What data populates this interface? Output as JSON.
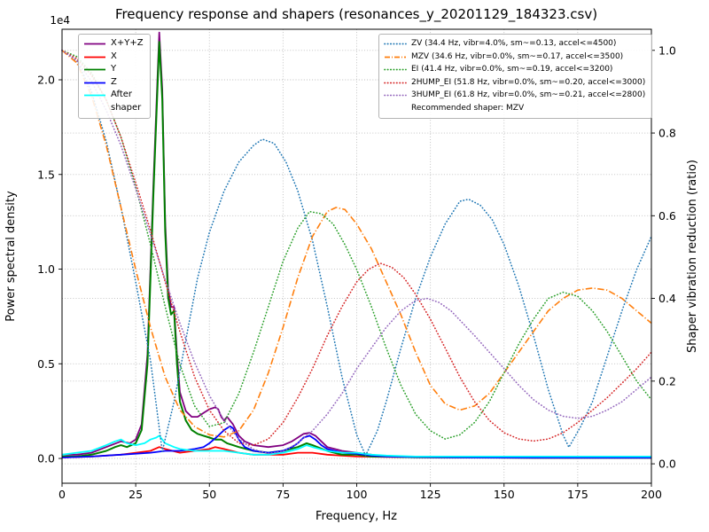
{
  "figure": {
    "title": "Frequency response and shapers (resonances_y_20201129_184323.csv)"
  },
  "legend_psd": {
    "items": [
      {
        "name": "xyz",
        "label": "X+Y+Z",
        "color": "#800080",
        "style": "solid"
      },
      {
        "name": "x",
        "label": "X",
        "color": "#ff0000",
        "style": "solid"
      },
      {
        "name": "y",
        "label": "Y",
        "color": "#008000",
        "style": "solid"
      },
      {
        "name": "z",
        "label": "Z",
        "color": "#0000ff",
        "style": "solid"
      },
      {
        "name": "after-shaper",
        "label": "After\nshaper",
        "color": "#00ffff",
        "style": "solid"
      }
    ]
  },
  "legend_shapers": {
    "items": [
      {
        "name": "zv",
        "label": "ZV (34.4 Hz, vibr=4.0%, sm~=0.13, accel<=4500)",
        "color": "#1f77b4",
        "style": "dotted"
      },
      {
        "name": "mzv",
        "label": "MZV (34.6 Hz, vibr=0.0%, sm~=0.17, accel<=3500)",
        "color": "#ff7f0e",
        "style": "dashdot"
      },
      {
        "name": "ei",
        "label": "EI (41.4 Hz, vibr=0.0%, sm~=0.19, accel<=3200)",
        "color": "#2ca02c",
        "style": "dotted"
      },
      {
        "name": "2hump-ei",
        "label": "2HUMP_EI (51.8 Hz, vibr=0.0%, sm~=0.20, accel<=3000)",
        "color": "#d62728",
        "style": "dotted"
      },
      {
        "name": "3hump-ei",
        "label": "3HUMP_EI (61.8 Hz, vibr=0.0%, sm~=0.21, accel<=2800)",
        "color": "#9467bd",
        "style": "dotted"
      }
    ],
    "note": "Recommended shaper: MZV"
  },
  "chart_data": {
    "type": "line",
    "title": "Frequency response and shapers (resonances_y_20201129_184323.csv)",
    "x_axis": {
      "label": "Frequency, Hz",
      "min": 0,
      "max": 200,
      "ticks": [
        0,
        25,
        50,
        75,
        100,
        125,
        150,
        175,
        200
      ]
    },
    "y_axis_left": {
      "label": "Power spectral density",
      "offset_text": "1e4",
      "unit_scale": 10000,
      "ticks": [
        0.0,
        0.5,
        1.0,
        1.5,
        2.0
      ],
      "range": [
        -0.131,
        2.267
      ]
    },
    "y_axis_right": {
      "label": "Shaper vibration reduction (ratio)",
      "ticks": [
        0.0,
        0.2,
        0.4,
        0.6,
        0.8,
        1.0
      ],
      "range": [
        -0.047,
        1.051
      ]
    },
    "grid": true,
    "series": [
      {
        "name": "xyz",
        "label": "X+Y+Z",
        "axis": "left",
        "color": "#800080",
        "style": "solid",
        "width": 1.8,
        "x": [
          0,
          5,
          10,
          15,
          20,
          23,
          25,
          27,
          29,
          31,
          33,
          34,
          35,
          36,
          37,
          38,
          39,
          40,
          42,
          44,
          46,
          48,
          50,
          52,
          53,
          54,
          55,
          56,
          57,
          58,
          60,
          62,
          65,
          70,
          75,
          78,
          80,
          82,
          84,
          86,
          88,
          90,
          95,
          100,
          105,
          110,
          120,
          140,
          160,
          180,
          200
        ],
        "y": [
          0.02,
          0.02,
          0.03,
          0.06,
          0.09,
          0.08,
          0.1,
          0.18,
          0.55,
          1.45,
          2.25,
          1.95,
          1.25,
          0.9,
          0.8,
          0.8,
          0.55,
          0.35,
          0.25,
          0.22,
          0.22,
          0.24,
          0.26,
          0.27,
          0.26,
          0.22,
          0.2,
          0.22,
          0.2,
          0.18,
          0.12,
          0.09,
          0.07,
          0.06,
          0.07,
          0.09,
          0.11,
          0.13,
          0.135,
          0.12,
          0.09,
          0.06,
          0.04,
          0.03,
          0.02,
          0.01,
          0.008,
          0.006,
          0.005,
          0.005,
          0.005
        ]
      },
      {
        "name": "x",
        "label": "X",
        "axis": "left",
        "color": "#ff0000",
        "style": "solid",
        "width": 1.8,
        "x": [
          0,
          10,
          20,
          30,
          33,
          35,
          40,
          45,
          50,
          52,
          55,
          60,
          65,
          70,
          75,
          80,
          85,
          90,
          100,
          110,
          130,
          160,
          200
        ],
        "y": [
          0.005,
          0.01,
          0.02,
          0.04,
          0.06,
          0.05,
          0.03,
          0.04,
          0.05,
          0.06,
          0.05,
          0.03,
          0.02,
          0.02,
          0.02,
          0.03,
          0.03,
          0.02,
          0.01,
          0.008,
          0.005,
          0.004,
          0.004
        ]
      },
      {
        "name": "y",
        "label": "Y",
        "axis": "left",
        "color": "#008000",
        "style": "solid",
        "width": 2.0,
        "x": [
          0,
          5,
          10,
          15,
          18,
          20,
          22,
          25,
          27,
          29,
          31,
          33,
          34,
          35,
          36,
          37,
          38,
          39,
          40,
          42,
          44,
          46,
          48,
          50,
          52,
          54,
          56,
          58,
          60,
          65,
          70,
          75,
          80,
          83,
          85,
          90,
          95,
          100,
          105,
          110,
          120,
          140,
          160,
          180,
          200
        ],
        "y": [
          0.01,
          0.01,
          0.02,
          0.04,
          0.06,
          0.07,
          0.06,
          0.08,
          0.15,
          0.5,
          1.4,
          2.2,
          1.9,
          1.2,
          0.85,
          0.76,
          0.78,
          0.5,
          0.3,
          0.2,
          0.15,
          0.13,
          0.12,
          0.11,
          0.1,
          0.1,
          0.08,
          0.07,
          0.06,
          0.04,
          0.03,
          0.04,
          0.06,
          0.08,
          0.07,
          0.04,
          0.02,
          0.02,
          0.01,
          0.01,
          0.006,
          0.005,
          0.004,
          0.004,
          0.004
        ]
      },
      {
        "name": "z",
        "label": "Z",
        "axis": "left",
        "color": "#0000ff",
        "style": "solid",
        "width": 1.8,
        "x": [
          0,
          10,
          20,
          30,
          35,
          40,
          45,
          48,
          50,
          53,
          55,
          57,
          58,
          60,
          62,
          65,
          70,
          75,
          78,
          80,
          82,
          84,
          86,
          88,
          90,
          95,
          100,
          105,
          110,
          120,
          140,
          160,
          180,
          200
        ],
        "y": [
          0.005,
          0.01,
          0.02,
          0.03,
          0.04,
          0.04,
          0.05,
          0.06,
          0.08,
          0.12,
          0.15,
          0.17,
          0.16,
          0.1,
          0.06,
          0.04,
          0.03,
          0.04,
          0.06,
          0.08,
          0.11,
          0.12,
          0.1,
          0.07,
          0.05,
          0.03,
          0.025,
          0.015,
          0.01,
          0.007,
          0.005,
          0.004,
          0.004,
          0.004
        ]
      },
      {
        "name": "after-shaper",
        "label": "After\nshaper",
        "axis": "left",
        "color": "#00ffff",
        "style": "solid",
        "width": 1.8,
        "x": [
          0,
          5,
          10,
          15,
          18,
          20,
          22,
          25,
          28,
          30,
          32,
          33,
          35,
          38,
          40,
          45,
          50,
          55,
          60,
          65,
          70,
          75,
          80,
          83,
          85,
          90,
          95,
          100,
          105,
          110,
          120,
          140,
          160,
          180,
          200
        ],
        "y": [
          0.02,
          0.03,
          0.04,
          0.07,
          0.09,
          0.1,
          0.08,
          0.07,
          0.08,
          0.1,
          0.11,
          0.12,
          0.08,
          0.06,
          0.05,
          0.04,
          0.04,
          0.04,
          0.03,
          0.02,
          0.02,
          0.03,
          0.05,
          0.07,
          0.06,
          0.04,
          0.03,
          0.03,
          0.02,
          0.015,
          0.01,
          0.01,
          0.01,
          0.01,
          0.01
        ]
      },
      {
        "name": "zv",
        "label": "ZV",
        "axis": "right",
        "color": "#1f77b4",
        "style": "dotted",
        "width": 1.6,
        "x": [
          0,
          5,
          10,
          15,
          20,
          25,
          30,
          34,
          38,
          42,
          46,
          50,
          55,
          60,
          65,
          68,
          72,
          76,
          80,
          85,
          90,
          95,
          100,
          103,
          107,
          110,
          115,
          120,
          125,
          130,
          135,
          138,
          142,
          146,
          150,
          155,
          160,
          165,
          170,
          172,
          176,
          180,
          185,
          190,
          195,
          200
        ],
        "y": [
          1.0,
          0.975,
          0.9,
          0.78,
          0.62,
          0.44,
          0.25,
          0.03,
          0.15,
          0.3,
          0.45,
          0.56,
          0.66,
          0.73,
          0.77,
          0.785,
          0.775,
          0.73,
          0.66,
          0.54,
          0.38,
          0.21,
          0.07,
          0.02,
          0.08,
          0.15,
          0.28,
          0.4,
          0.5,
          0.58,
          0.635,
          0.64,
          0.625,
          0.59,
          0.53,
          0.43,
          0.31,
          0.18,
          0.07,
          0.04,
          0.09,
          0.15,
          0.26,
          0.37,
          0.47,
          0.55
        ]
      },
      {
        "name": "mzv",
        "label": "MZV",
        "axis": "right",
        "color": "#ff7f0e",
        "style": "dashdot",
        "width": 1.6,
        "x": [
          0,
          5,
          10,
          15,
          20,
          25,
          30,
          35,
          40,
          45,
          50,
          55,
          60,
          65,
          70,
          75,
          80,
          85,
          90,
          93,
          96,
          100,
          105,
          110,
          115,
          120,
          125,
          130,
          135,
          140,
          145,
          150,
          155,
          160,
          165,
          170,
          175,
          180,
          185,
          190,
          195,
          200
        ],
        "y": [
          1.0,
          0.97,
          0.89,
          0.77,
          0.62,
          0.47,
          0.33,
          0.21,
          0.13,
          0.09,
          0.07,
          0.065,
          0.08,
          0.13,
          0.22,
          0.33,
          0.45,
          0.55,
          0.61,
          0.62,
          0.615,
          0.58,
          0.52,
          0.44,
          0.36,
          0.27,
          0.19,
          0.145,
          0.13,
          0.14,
          0.17,
          0.22,
          0.27,
          0.32,
          0.37,
          0.4,
          0.42,
          0.425,
          0.42,
          0.4,
          0.37,
          0.34
        ]
      },
      {
        "name": "ei",
        "label": "EI",
        "axis": "right",
        "color": "#2ca02c",
        "style": "dotted",
        "width": 1.6,
        "x": [
          0,
          5,
          10,
          15,
          20,
          25,
          30,
          35,
          40,
          45,
          50,
          55,
          60,
          65,
          70,
          75,
          80,
          84,
          88,
          92,
          96,
          100,
          105,
          110,
          115,
          120,
          125,
          130,
          135,
          140,
          145,
          150,
          155,
          160,
          165,
          170,
          175,
          180,
          185,
          190,
          195,
          200
        ],
        "y": [
          1.0,
          0.985,
          0.945,
          0.88,
          0.79,
          0.67,
          0.53,
          0.38,
          0.24,
          0.14,
          0.09,
          0.1,
          0.17,
          0.27,
          0.38,
          0.49,
          0.57,
          0.61,
          0.605,
          0.58,
          0.53,
          0.47,
          0.38,
          0.28,
          0.19,
          0.12,
          0.08,
          0.06,
          0.07,
          0.1,
          0.15,
          0.22,
          0.29,
          0.35,
          0.4,
          0.415,
          0.405,
          0.37,
          0.32,
          0.26,
          0.2,
          0.155
        ]
      },
      {
        "name": "2hump-ei",
        "label": "2HUMP_EI",
        "axis": "right",
        "color": "#d62728",
        "style": "dotted",
        "width": 1.6,
        "x": [
          0,
          5,
          10,
          15,
          20,
          25,
          30,
          35,
          40,
          45,
          50,
          55,
          60,
          65,
          70,
          75,
          80,
          85,
          90,
          95,
          100,
          104,
          108,
          112,
          116,
          120,
          125,
          130,
          135,
          140,
          145,
          150,
          155,
          160,
          165,
          170,
          175,
          180,
          185,
          190,
          195,
          200
        ],
        "y": [
          1.0,
          0.98,
          0.94,
          0.88,
          0.79,
          0.68,
          0.565,
          0.44,
          0.32,
          0.21,
          0.13,
          0.08,
          0.05,
          0.045,
          0.06,
          0.1,
          0.16,
          0.23,
          0.31,
          0.38,
          0.44,
          0.47,
          0.485,
          0.475,
          0.45,
          0.41,
          0.35,
          0.28,
          0.21,
          0.15,
          0.105,
          0.075,
          0.06,
          0.055,
          0.06,
          0.075,
          0.1,
          0.13,
          0.16,
          0.195,
          0.23,
          0.27
        ]
      },
      {
        "name": "3hump-ei",
        "label": "3HUMP_EI",
        "axis": "right",
        "color": "#9467bd",
        "style": "dotted",
        "width": 1.6,
        "x": [
          0,
          5,
          10,
          15,
          20,
          25,
          30,
          35,
          40,
          45,
          50,
          55,
          60,
          65,
          70,
          75,
          80,
          85,
          90,
          95,
          100,
          105,
          110,
          115,
          120,
          124,
          128,
          132,
          136,
          140,
          145,
          150,
          155,
          160,
          165,
          170,
          175,
          180,
          185,
          190,
          195,
          200
        ],
        "y": [
          1.0,
          0.975,
          0.925,
          0.855,
          0.77,
          0.665,
          0.555,
          0.445,
          0.34,
          0.245,
          0.165,
          0.105,
          0.06,
          0.035,
          0.025,
          0.03,
          0.05,
          0.08,
          0.12,
          0.17,
          0.23,
          0.28,
          0.33,
          0.37,
          0.395,
          0.4,
          0.39,
          0.37,
          0.34,
          0.31,
          0.27,
          0.23,
          0.19,
          0.155,
          0.13,
          0.115,
          0.11,
          0.115,
          0.13,
          0.15,
          0.18,
          0.21
        ]
      }
    ]
  }
}
